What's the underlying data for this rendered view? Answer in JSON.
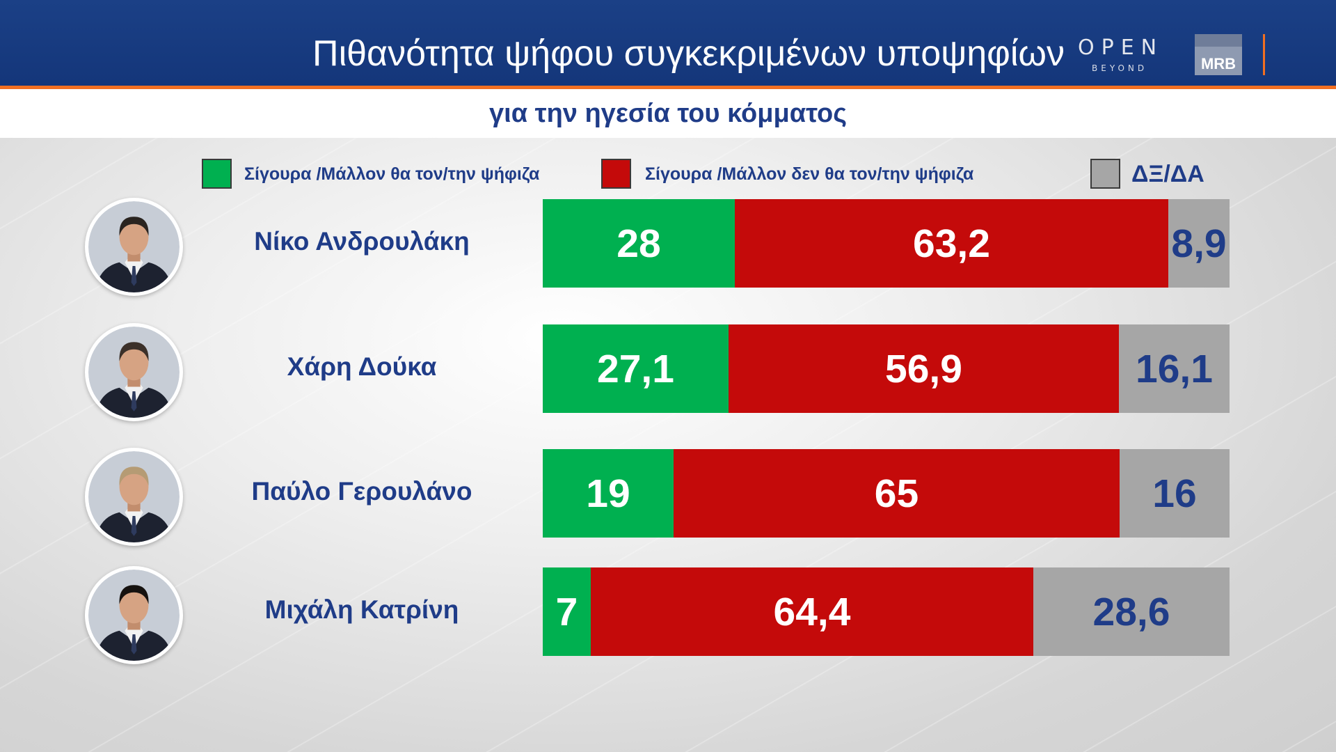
{
  "header": {
    "brand_open": "OPEN",
    "brand_beyond": "BEYOND",
    "brand_mrb": "MRB"
  },
  "colors": {
    "header_bg": "#173a7e",
    "accent": "#f26f21",
    "text": "#1f3c88"
  },
  "chart_data": {
    "type": "bar",
    "orientation": "horizontal",
    "stacked": true,
    "title": "Πιθανότητα ψήφου συγκεκριμένων υποψηφίων",
    "subtitle": "για την ηγεσία του κόμματος",
    "legend": "top",
    "categories": [
      "Νίκο Ανδρουλάκη",
      "Χάρη Δούκα",
      "Παύλο Γερουλάνο",
      "Μιχάλη Κατρίνη"
    ],
    "series": [
      {
        "name": "Σίγουρα /Μάλλον θα τον/την ψήφιζα",
        "color": "#00b050",
        "values": [
          28,
          27.1,
          19,
          7
        ]
      },
      {
        "name": "Σίγουρα /Μάλλον δεν θα τον/την ψήφιζα",
        "color": "#c40a0a",
        "values": [
          63.2,
          56.9,
          65,
          64.4
        ]
      },
      {
        "name": "ΔΞ/ΔΑ",
        "color": "#a6a6a6",
        "values": [
          8.9,
          16.1,
          16,
          28.6
        ]
      }
    ]
  }
}
